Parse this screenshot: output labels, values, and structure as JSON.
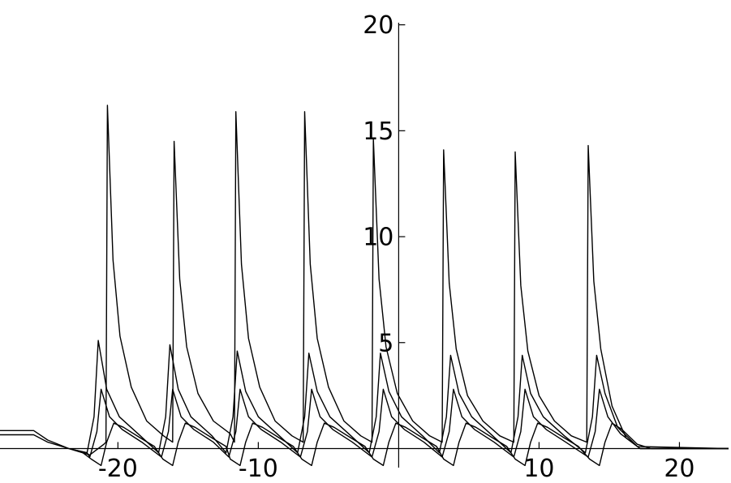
{
  "chart_data": {
    "type": "line",
    "xlim": [
      -28.4,
      23.5
    ],
    "ylim": [
      -0.9,
      20.1
    ],
    "xticks": [
      -20,
      -10,
      10,
      20
    ],
    "yticks": [
      5,
      10,
      15,
      20
    ],
    "series": [
      {
        "color": "#000000",
        "x": [
          -28.4,
          -26,
          -25,
          -23.5,
          -22,
          -21,
          -20.85,
          -20.75,
          -20.35,
          -19.85,
          -19.05,
          -17.95,
          -16.75,
          -16.1,
          -16.0,
          -15.6,
          -15.1,
          -14.3,
          -13.2,
          -12.0,
          -11.7,
          -11.6,
          -11.2,
          -10.7,
          -9.9,
          -8.8,
          -7.6,
          -6.8,
          -6.7,
          -6.3,
          -5.8,
          -5.0,
          -3.9,
          -2.7,
          -1.9,
          -1.8,
          -1.4,
          -0.9,
          -0.1,
          1.0,
          2.2,
          3.1,
          3.2,
          3.6,
          4.1,
          4.9,
          6.0,
          7.2,
          8.2,
          8.3,
          8.7,
          9.2,
          10.0,
          11.1,
          12.3,
          13.4,
          13.5,
          13.9,
          14.4,
          15.2,
          16.2,
          17.2,
          23.5
        ],
        "values": [
          0.85,
          0.85,
          0.4,
          0.0,
          -0.3,
          0.2,
          0.3,
          16.2,
          8.9,
          5.3,
          2.9,
          1.3,
          0.6,
          0.3,
          14.5,
          8.0,
          4.8,
          2.6,
          1.3,
          0.7,
          0.3,
          15.9,
          8.7,
          5.2,
          2.9,
          1.3,
          0.6,
          0.3,
          15.9,
          8.7,
          5.2,
          2.9,
          1.3,
          0.6,
          0.3,
          14.6,
          8.0,
          4.8,
          2.6,
          1.3,
          0.6,
          0.3,
          14.1,
          7.8,
          4.7,
          2.5,
          1.3,
          0.6,
          0.3,
          14.0,
          7.7,
          4.6,
          2.5,
          1.3,
          0.6,
          0.3,
          14.3,
          7.9,
          4.7,
          2.0,
          0.5,
          0,
          0
        ]
      },
      {
        "color": "#000000",
        "x": [
          -28.4,
          -26,
          -25,
          -23.5,
          -22.2,
          -21.7,
          -21.4,
          -20.8,
          -19.9,
          -18.4,
          -17.1,
          -16.6,
          -16.3,
          -15.7,
          -14.8,
          -13.3,
          -12.3,
          -11.8,
          -11.5,
          -10.9,
          -10.0,
          -8.5,
          -7.2,
          -6.7,
          -6.4,
          -5.8,
          -4.9,
          -3.4,
          -2.1,
          -1.6,
          -1.3,
          -0.7,
          0.2,
          1.7,
          2.9,
          3.4,
          3.7,
          4.3,
          5.2,
          6.7,
          8.0,
          8.5,
          8.8,
          9.4,
          10.3,
          11.8,
          13.3,
          13.8,
          14.1,
          14.7,
          15.6,
          17.0,
          23.5
        ],
        "values": [
          0.65,
          0.65,
          0.3,
          0.0,
          -0.2,
          1.5,
          5.1,
          2.8,
          1.5,
          0.6,
          -0.2,
          1.5,
          4.9,
          2.8,
          1.5,
          0.6,
          -0.2,
          1.5,
          4.6,
          2.7,
          1.5,
          0.6,
          -0.2,
          1.5,
          4.5,
          2.7,
          1.5,
          0.6,
          -0.2,
          1.5,
          4.5,
          2.7,
          1.5,
          0.6,
          -0.2,
          1.5,
          4.4,
          2.6,
          1.5,
          0.6,
          -0.2,
          1.5,
          4.4,
          2.6,
          1.5,
          0.6,
          -0.2,
          1.5,
          4.4,
          2.6,
          1.0,
          0.1,
          0
        ]
      },
      {
        "color": "#000000",
        "x": [
          -23.5,
          -22.2,
          -22.0,
          -21.5,
          -21.2,
          -20.6,
          -19.7,
          -18.3,
          -16.9,
          -16.4,
          -16.1,
          -15.5,
          -14.6,
          -13.2,
          -12.1,
          -11.6,
          -11.3,
          -10.7,
          -9.8,
          -8.4,
          -7.0,
          -6.5,
          -6.2,
          -5.6,
          -4.7,
          -3.3,
          -1.9,
          -1.4,
          -1.1,
          -0.5,
          0.4,
          1.8,
          3.1,
          3.6,
          3.9,
          4.5,
          5.4,
          6.8,
          8.2,
          8.7,
          9.0,
          9.6,
          10.5,
          11.9,
          13.5,
          14.0,
          14.3,
          14.9,
          15.8,
          17.2,
          23.5
        ],
        "values": [
          0,
          -0.2,
          -0.4,
          0.8,
          2.8,
          1.5,
          0.9,
          0.3,
          -0.4,
          0.8,
          2.8,
          1.5,
          0.9,
          0.3,
          -0.4,
          0.8,
          2.8,
          1.5,
          0.9,
          0.3,
          -0.4,
          0.8,
          2.8,
          1.5,
          0.9,
          0.3,
          -0.4,
          0.8,
          2.8,
          1.5,
          0.9,
          0.3,
          -0.4,
          0.8,
          2.8,
          1.5,
          0.9,
          0.3,
          -0.4,
          0.8,
          2.8,
          1.5,
          0.9,
          0.3,
          -0.4,
          0.8,
          2.8,
          1.5,
          0.7,
          0,
          0
        ]
      },
      {
        "color": "#000000",
        "x": [
          -23.5,
          -22.5,
          -21.9,
          -21.2,
          -20.8,
          -20.3,
          -19.6,
          -18.4,
          -17.4,
          -16.8,
          -16.1,
          -15.7,
          -15.2,
          -14.5,
          -13.3,
          -12.3,
          -12.0,
          -11.3,
          -10.9,
          -10.4,
          -9.7,
          -8.5,
          -7.5,
          -6.9,
          -6.2,
          -5.8,
          -5.3,
          -4.6,
          -3.4,
          -2.4,
          -1.8,
          -1.1,
          -0.7,
          -0.2,
          0.5,
          1.7,
          2.7,
          3.2,
          3.9,
          4.3,
          4.8,
          5.5,
          6.7,
          7.7,
          8.3,
          9.0,
          9.4,
          9.9,
          10.6,
          11.8,
          12.8,
          13.6,
          14.3,
          14.7,
          15.2,
          15.9,
          17.0,
          18.0,
          23.5
        ],
        "values": [
          0,
          -0.2,
          -0.5,
          -0.8,
          0.3,
          1.2,
          1.0,
          0.5,
          0.1,
          -0.5,
          -0.8,
          0.3,
          1.2,
          1.0,
          0.5,
          0.1,
          -0.5,
          -0.8,
          0.3,
          1.2,
          1.0,
          0.5,
          0.1,
          -0.5,
          -0.8,
          0.3,
          1.2,
          1.0,
          0.5,
          0.1,
          -0.5,
          -0.8,
          0.3,
          1.2,
          1.0,
          0.5,
          0.1,
          -0.5,
          -0.8,
          0.3,
          1.2,
          1.0,
          0.5,
          0.1,
          -0.5,
          -0.8,
          0.3,
          1.2,
          1.0,
          0.5,
          0.1,
          -0.5,
          -0.8,
          0.3,
          1.2,
          0.9,
          0.2,
          0,
          0
        ]
      }
    ]
  }
}
